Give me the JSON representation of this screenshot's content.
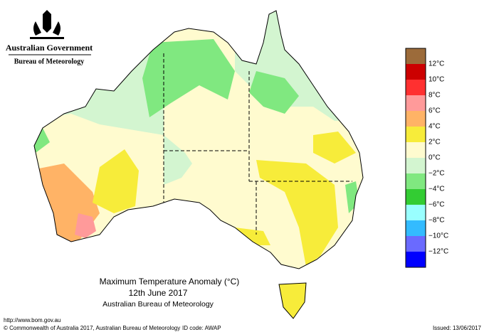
{
  "header": {
    "government": "Australian Government",
    "bureau": "Bureau of Meteorology"
  },
  "map": {
    "title": "Maximum Temperature Anomaly (°C)",
    "date": "12th June 2017",
    "source": "Australian Bureau of Meteorology"
  },
  "legend": {
    "labels": [
      "12°C",
      "10°C",
      "8°C",
      "6°C",
      "4°C",
      "2°C",
      "0°C",
      "−2°C",
      "−4°C",
      "−6°C",
      "−8°C",
      "−10°C",
      "−12°C"
    ],
    "colors": [
      "#9c6b3a",
      "#cc0000",
      "#ff3030",
      "#ff9a9a",
      "#ffb366",
      "#f7ec3a",
      "#fffbcf",
      "#d3f5d0",
      "#80e880",
      "#33cc33",
      "#99ffff",
      "#33bbff",
      "#6a6aff",
      "#0000ff"
    ]
  },
  "footer": {
    "url": "http://www.bom.gov.au",
    "copyright": "© Commonwealth of Australia 2017, Australian Bureau of Meteorology",
    "id_code": "ID code: AWAP",
    "issued": "Issued: 13/06/2017"
  }
}
